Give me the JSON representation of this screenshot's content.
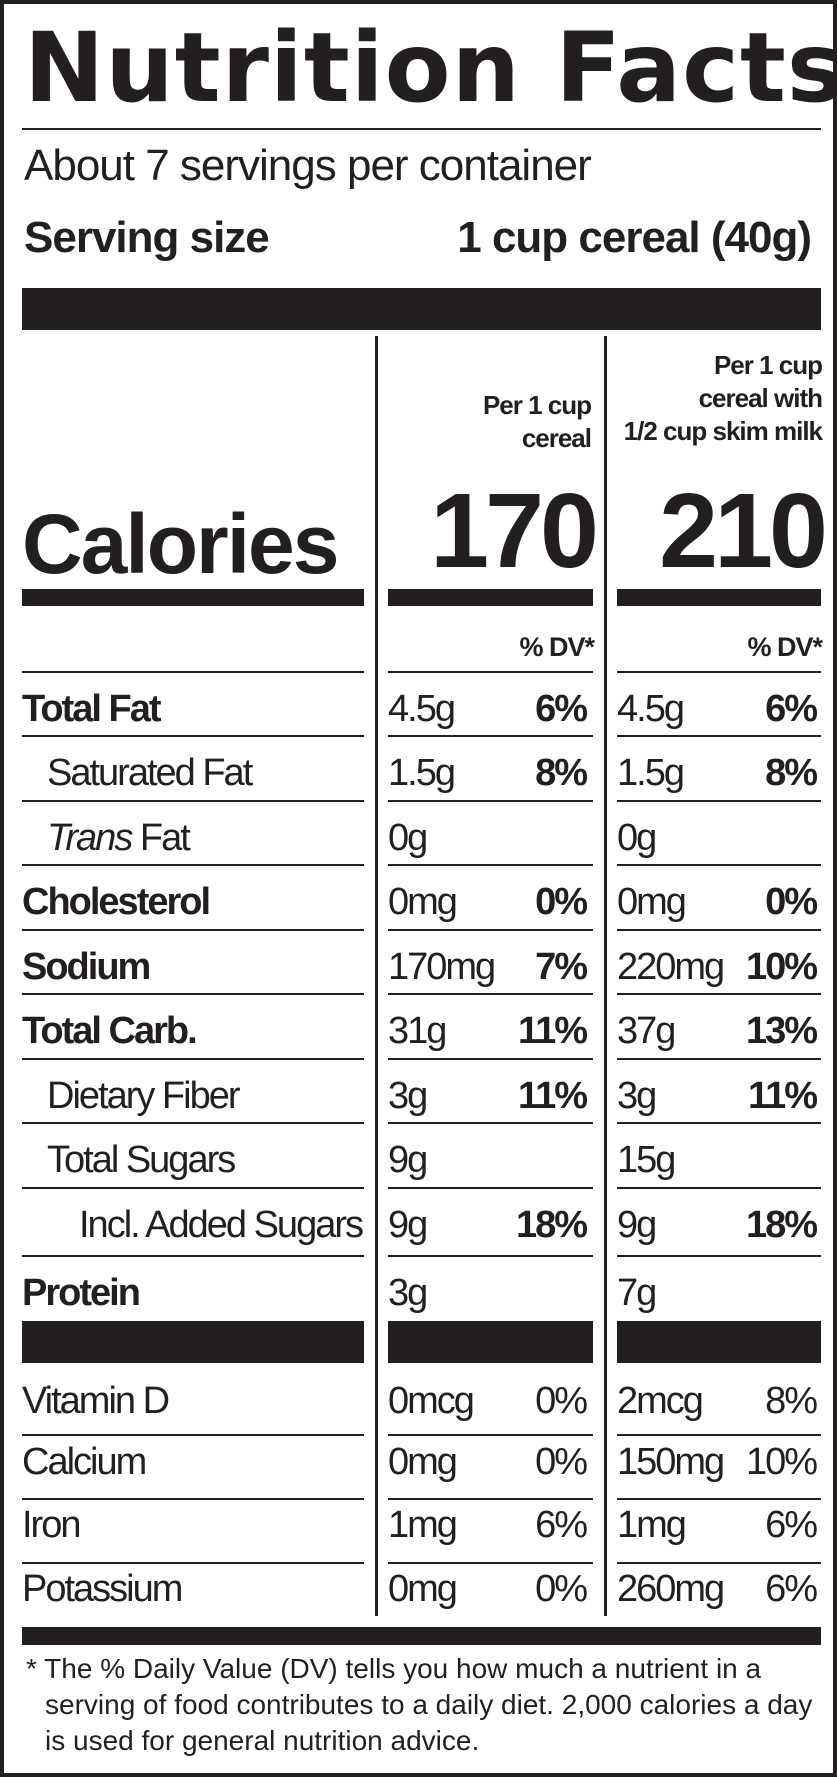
{
  "title": "Nutrition Facts",
  "servings_per_container": "About 7 servings per container",
  "serving_size_label": "Serving size",
  "serving_size_value": "1 cup cereal (40g)",
  "column_headers": {
    "col1": [
      "Per 1 cup",
      "cereal"
    ],
    "col2": [
      "Per 1 cup",
      "cereal with",
      "1/2 cup skim milk"
    ]
  },
  "calories_label": "Calories",
  "calories": {
    "col1": "170",
    "col2": "210"
  },
  "dv_header": "% DV*",
  "nutrients": [
    {
      "label": "Total Fat",
      "emph": "",
      "c1_amount": "4.5g",
      "c1_dv": "6%",
      "c2_amount": "4.5g",
      "c2_dv": "6%"
    },
    {
      "label": "Saturated Fat",
      "emph": "",
      "c1_amount": "1.5g",
      "c1_dv": "8%",
      "c2_amount": "1.5g",
      "c2_dv": "8%"
    },
    {
      "label": " Fat",
      "emph": "Trans",
      "c1_amount": "0g",
      "c1_dv": "",
      "c2_amount": "0g",
      "c2_dv": ""
    },
    {
      "label": "Cholesterol",
      "emph": "",
      "c1_amount": "0mg",
      "c1_dv": "0%",
      "c2_amount": "0mg",
      "c2_dv": "0%"
    },
    {
      "label": "Sodium",
      "emph": "",
      "c1_amount": "170mg",
      "c1_dv": "7%",
      "c2_amount": "220mg",
      "c2_dv": "10%"
    },
    {
      "label": "Total Carb.",
      "emph": "",
      "c1_amount": "31g",
      "c1_dv": "11%",
      "c2_amount": "37g",
      "c2_dv": "13%"
    },
    {
      "label": "Dietary Fiber",
      "emph": "",
      "c1_amount": "3g",
      "c1_dv": "11%",
      "c2_amount": "3g",
      "c2_dv": "11%"
    },
    {
      "label": "Total Sugars",
      "emph": "",
      "c1_amount": "9g",
      "c1_dv": "",
      "c2_amount": "15g",
      "c2_dv": ""
    },
    {
      "label": "Incl. Added Sugars",
      "emph": "",
      "c1_amount": "9g",
      "c1_dv": "18%",
      "c2_amount": "9g",
      "c2_dv": "18%"
    },
    {
      "label": "Protein",
      "emph": "",
      "c1_amount": "3g",
      "c1_dv": "",
      "c2_amount": "7g",
      "c2_dv": ""
    }
  ],
  "vitamins": [
    {
      "label": "Vitamin D",
      "c1_amount": "0mcg",
      "c1_dv": "0%",
      "c2_amount": "2mcg",
      "c2_dv": "8%"
    },
    {
      "label": "Calcium",
      "c1_amount": "0mg",
      "c1_dv": "0%",
      "c2_amount": "150mg",
      "c2_dv": "10%"
    },
    {
      "label": "Iron",
      "c1_amount": "1mg",
      "c1_dv": "6%",
      "c2_amount": "1mg",
      "c2_dv": "6%"
    },
    {
      "label": "Potassium",
      "c1_amount": "0mg",
      "c1_dv": "0%",
      "c2_amount": "260mg",
      "c2_dv": "6%"
    }
  ],
  "footnote": [
    "* The % Daily Value (DV) tells you how much a nutrient in a",
    "serving of food contributes to a daily diet. 2,000 calories a day",
    "is used for general nutrition advice."
  ]
}
